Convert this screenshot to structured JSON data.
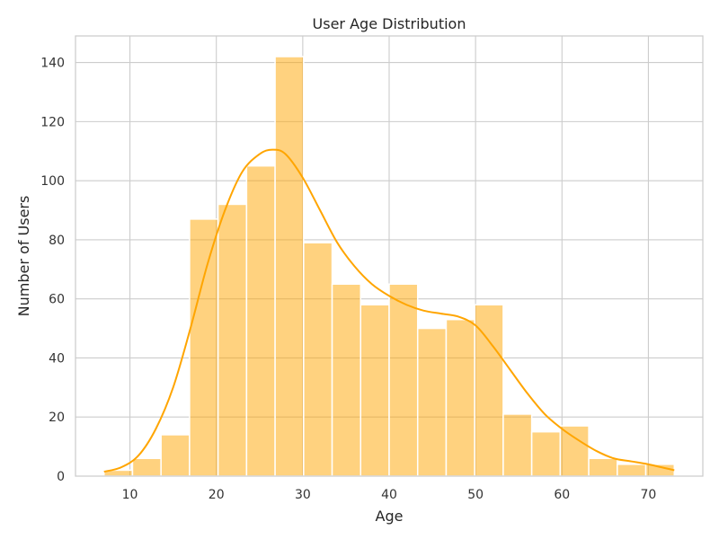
{
  "chart_data": {
    "type": "bar",
    "title": "User Age Distribution",
    "xlabel": "Age",
    "ylabel": "Number of Users",
    "xlim": [
      3.7,
      76.3
    ],
    "ylim": [
      0,
      149
    ],
    "xticks": [
      10,
      20,
      30,
      40,
      50,
      60,
      70
    ],
    "yticks": [
      0,
      20,
      40,
      60,
      80,
      100,
      120,
      140
    ],
    "grid": true,
    "bin_edges": [
      7,
      10.3,
      13.6,
      16.9,
      20.2,
      23.5,
      26.8,
      30.1,
      33.4,
      36.7,
      40,
      43.3,
      46.6,
      49.9,
      53.2,
      56.5,
      59.8,
      63.1,
      66.4,
      69.7,
      73
    ],
    "values": [
      2,
      6,
      14,
      87,
      92,
      105,
      142,
      79,
      65,
      58,
      65,
      50,
      53,
      58,
      21,
      15,
      17,
      6,
      4,
      4
    ],
    "kde": {
      "x": [
        7,
        9,
        11,
        13,
        15,
        17,
        19,
        21,
        23,
        25,
        26.5,
        28,
        30,
        32,
        34,
        36,
        38,
        40,
        42,
        44,
        46,
        48,
        50,
        52,
        54,
        56,
        58,
        60,
        62,
        64,
        66,
        68,
        70,
        73
      ],
      "y": [
        1.5,
        3,
        7,
        16,
        30,
        50,
        72,
        90,
        103,
        109,
        110.5,
        109,
        101,
        90,
        79,
        71,
        65,
        61,
        58,
        56,
        55,
        54,
        51,
        44,
        36,
        28,
        21,
        16,
        12,
        8.5,
        6,
        5,
        4,
        2
      ]
    },
    "bar_color": "#FFA500",
    "bar_opacity": 0.5,
    "line_color": "#FFA500",
    "grid_color": "#cccccc",
    "background": "#ffffff"
  }
}
